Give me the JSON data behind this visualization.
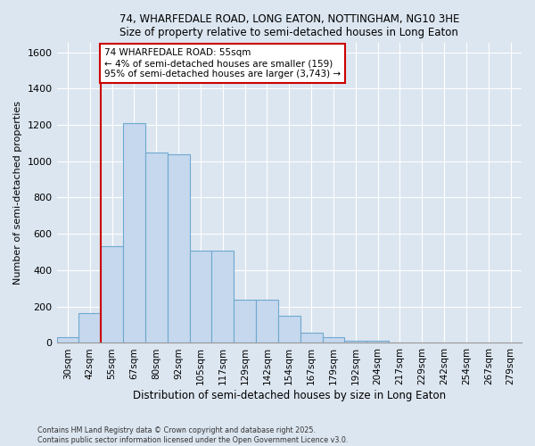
{
  "title_line1": "74, WHARFEDALE ROAD, LONG EATON, NOTTINGHAM, NG10 3HE",
  "title_line2": "Size of property relative to semi-detached houses in Long Eaton",
  "xlabel": "Distribution of semi-detached houses by size in Long Eaton",
  "ylabel": "Number of semi-detached properties",
  "categories": [
    "30sqm",
    "42sqm",
    "55sqm",
    "67sqm",
    "80sqm",
    "92sqm",
    "105sqm",
    "117sqm",
    "129sqm",
    "142sqm",
    "154sqm",
    "167sqm",
    "179sqm",
    "192sqm",
    "204sqm",
    "217sqm",
    "229sqm",
    "242sqm",
    "254sqm",
    "267sqm",
    "279sqm"
  ],
  "values": [
    30,
    165,
    530,
    1210,
    1050,
    1040,
    510,
    510,
    240,
    240,
    150,
    55,
    30,
    10,
    10,
    0,
    0,
    0,
    0,
    0,
    0
  ],
  "bar_color": "#c5d8ed",
  "bar_edge_color": "#6fa8d0",
  "highlight_bin_index": 2,
  "vline_color": "#cc0000",
  "annotation_title": "74 WHARFEDALE ROAD: 55sqm",
  "annotation_line1": "← 4% of semi-detached houses are smaller (159)",
  "annotation_line2": "95% of semi-detached houses are larger (3,743) →",
  "annotation_box_color": "#cc0000",
  "ylim": [
    0,
    1650
  ],
  "yticks": [
    0,
    200,
    400,
    600,
    800,
    1000,
    1200,
    1400,
    1600
  ],
  "background_color": "#dce6f0",
  "grid_color": "#ffffff",
  "footer_line1": "Contains HM Land Registry data © Crown copyright and database right 2025.",
  "footer_line2": "Contains public sector information licensed under the Open Government Licence v3.0."
}
